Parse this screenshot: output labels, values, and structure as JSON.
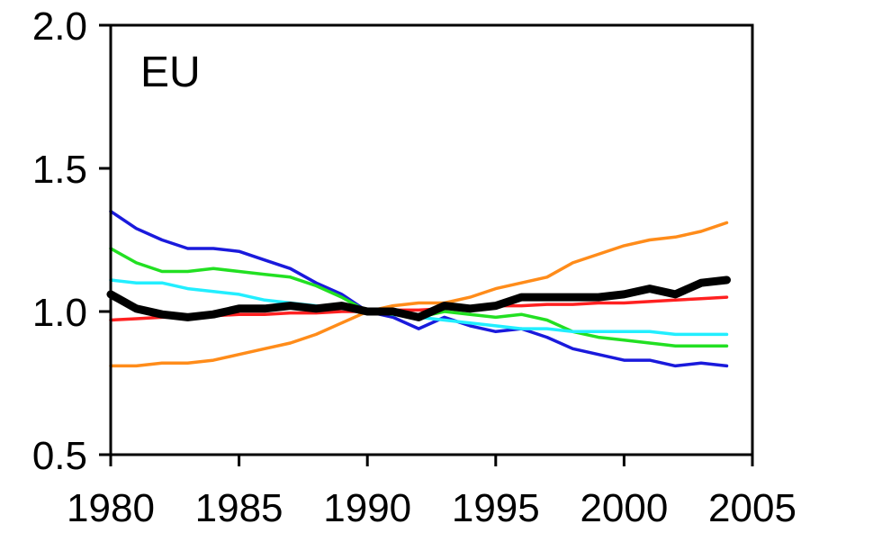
{
  "chart_data": {
    "type": "line",
    "title": "",
    "xlabel": "",
    "ylabel": "",
    "annotation": "EU",
    "xlim": [
      1980,
      2005
    ],
    "ylim": [
      0.5,
      2.0
    ],
    "x_ticks": [
      1980,
      1985,
      1990,
      1995,
      2000,
      2005
    ],
    "x_tick_labels": [
      "1980",
      "1985",
      "1990",
      "1995",
      "2000",
      "2005"
    ],
    "y_ticks": [
      0.5,
      1.0,
      1.5,
      2.0
    ],
    "y_tick_labels": [
      "0.5",
      "1.0",
      "1.5",
      "2.0"
    ],
    "grid": false,
    "legend": "none",
    "x": [
      1980,
      1981,
      1982,
      1983,
      1984,
      1985,
      1986,
      1987,
      1988,
      1989,
      1990,
      1991,
      1992,
      1993,
      1994,
      1995,
      1996,
      1997,
      1998,
      1999,
      2000,
      2001,
      2002,
      2003,
      2004
    ],
    "series": [
      {
        "color": "#ff8c1a",
        "emphasis": "normal",
        "values": [
          0.81,
          0.81,
          0.82,
          0.82,
          0.83,
          0.85,
          0.87,
          0.89,
          0.92,
          0.96,
          1.0,
          1.02,
          1.03,
          1.03,
          1.05,
          1.08,
          1.1,
          1.12,
          1.17,
          1.2,
          1.23,
          1.25,
          1.26,
          1.28,
          1.31
        ]
      },
      {
        "color": "#ff2020",
        "emphasis": "normal",
        "values": [
          0.97,
          0.975,
          0.98,
          0.98,
          0.985,
          0.99,
          0.99,
          0.995,
          0.995,
          1.0,
          1.0,
          1.005,
          1.005,
          1.01,
          1.015,
          1.02,
          1.02,
          1.025,
          1.025,
          1.03,
          1.03,
          1.035,
          1.04,
          1.045,
          1.05
        ]
      },
      {
        "color": "#1a1adc",
        "emphasis": "normal",
        "values": [
          1.35,
          1.29,
          1.25,
          1.22,
          1.22,
          1.21,
          1.18,
          1.15,
          1.1,
          1.06,
          1.0,
          0.98,
          0.94,
          0.98,
          0.95,
          0.93,
          0.94,
          0.91,
          0.87,
          0.85,
          0.83,
          0.83,
          0.81,
          0.82,
          0.81
        ]
      },
      {
        "color": "#22e022",
        "emphasis": "normal",
        "values": [
          1.22,
          1.17,
          1.14,
          1.14,
          1.15,
          1.14,
          1.13,
          1.12,
          1.09,
          1.05,
          1.0,
          0.99,
          0.98,
          1.0,
          0.99,
          0.98,
          0.99,
          0.97,
          0.93,
          0.91,
          0.9,
          0.89,
          0.88,
          0.88,
          0.88
        ]
      },
      {
        "color": "#22eeff",
        "emphasis": "normal",
        "values": [
          1.11,
          1.1,
          1.1,
          1.08,
          1.07,
          1.06,
          1.04,
          1.03,
          1.02,
          1.01,
          1.0,
          0.99,
          0.98,
          0.97,
          0.96,
          0.95,
          0.94,
          0.94,
          0.93,
          0.93,
          0.93,
          0.93,
          0.92,
          0.92,
          0.92
        ]
      },
      {
        "color": "#000000",
        "emphasis": "bold",
        "values": [
          1.06,
          1.01,
          0.99,
          0.98,
          0.99,
          1.01,
          1.01,
          1.02,
          1.01,
          1.02,
          1.0,
          1.0,
          0.98,
          1.02,
          1.01,
          1.02,
          1.05,
          1.05,
          1.05,
          1.05,
          1.06,
          1.08,
          1.06,
          1.1,
          1.11
        ]
      }
    ]
  },
  "colors": {
    "axis": "#000000",
    "background": "#ffffff"
  }
}
